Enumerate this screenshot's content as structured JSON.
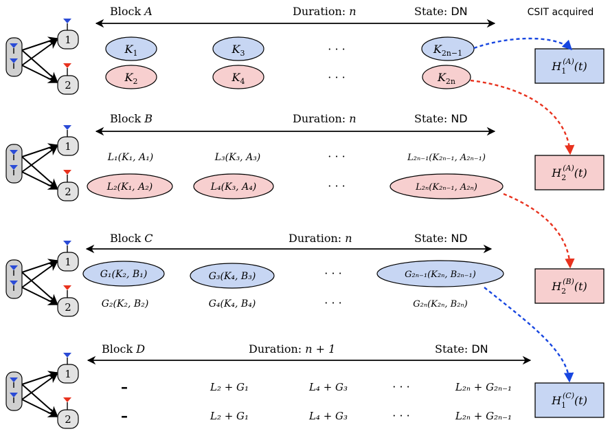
{
  "header": {
    "csit_label": "CSIT acquired"
  },
  "blocks": [
    {
      "id": "A",
      "title_prefix": "Block ",
      "title_var": "A",
      "duration_prefix": "Duration: ",
      "duration_value": "n",
      "state_prefix": "State: ",
      "state_value": "DN",
      "rx1_label": "1",
      "rx2_label": "2",
      "row1": [
        {
          "base": "K",
          "sub": "1",
          "shape": "ellipse-blue"
        },
        {
          "base": "K",
          "sub": "3",
          "shape": "ellipse-blue"
        },
        {
          "base": "· · ·",
          "sub": "",
          "shape": "none"
        },
        {
          "base": "K",
          "sub": "2n−1",
          "shape": "ellipse-blue"
        }
      ],
      "row2": [
        {
          "base": "K",
          "sub": "2",
          "shape": "ellipse-red"
        },
        {
          "base": "K",
          "sub": "4",
          "shape": "ellipse-red"
        },
        {
          "base": "· · ·",
          "sub": "",
          "shape": "none"
        },
        {
          "base": "K",
          "sub": "2n",
          "shape": "ellipse-red"
        }
      ]
    },
    {
      "id": "B",
      "title_prefix": "Block ",
      "title_var": "B",
      "duration_prefix": "Duration: ",
      "duration_value": "n",
      "state_prefix": "State: ",
      "state_value": "ND",
      "rx1_label": "1",
      "rx2_label": "2",
      "row1": [
        {
          "text": "L₁(K₁, A₁)",
          "shape": "none"
        },
        {
          "text": "L₃(K₃, A₃)",
          "shape": "none"
        },
        {
          "text": "· · ·",
          "shape": "none"
        },
        {
          "text": "L₂ₙ₋₁(K₂ₙ₋₁, A₂ₙ₋₁)",
          "shape": "none"
        }
      ],
      "row2": [
        {
          "text": "L₂(K₁, A₂)",
          "shape": "ellipse-red"
        },
        {
          "text": "L₄(K₃, A₄)",
          "shape": "ellipse-red"
        },
        {
          "text": "· · ·",
          "shape": "none"
        },
        {
          "text": "L₂ₙ(K₂ₙ₋₁, A₂ₙ)",
          "shape": "ellipse-red"
        }
      ]
    },
    {
      "id": "C",
      "title_prefix": "Block ",
      "title_var": "C",
      "duration_prefix": "Duration: ",
      "duration_value": "n",
      "state_prefix": "State: ",
      "state_value": "ND",
      "rx1_label": "1",
      "rx2_label": "2",
      "row1": [
        {
          "text": "G₁(K₂, B₁)",
          "shape": "ellipse-blue"
        },
        {
          "text": "G₃(K₄, B₃)",
          "shape": "ellipse-blue"
        },
        {
          "text": "· · ·",
          "shape": "none"
        },
        {
          "text": "G₂ₙ₋₁(K₂ₙ, B₂ₙ₋₁)",
          "shape": "ellipse-blue"
        }
      ],
      "row2": [
        {
          "text": "G₂(K₂, B₂)",
          "shape": "none"
        },
        {
          "text": "G₄(K₄, B₄)",
          "shape": "none"
        },
        {
          "text": "· · ·",
          "shape": "none"
        },
        {
          "text": "G₂ₙ(K₂ₙ, B₂ₙ)",
          "shape": "none"
        }
      ]
    },
    {
      "id": "D",
      "title_prefix": "Block ",
      "title_var": "D",
      "duration_prefix": "Duration: ",
      "duration_value": "n + 1",
      "state_prefix": "State: ",
      "state_value": "DN",
      "rx1_label": "1",
      "rx2_label": "2",
      "row1": [
        {
          "text": "–"
        },
        {
          "text": "L₂ + G₁"
        },
        {
          "text": "L₄ + G₃"
        },
        {
          "text": "· · ·"
        },
        {
          "text": "L₂ₙ + G₂ₙ₋₁"
        }
      ],
      "row2": [
        {
          "text": "–"
        },
        {
          "text": "L₂ + G₁"
        },
        {
          "text": "L₄ + G₃"
        },
        {
          "text": "· · ·"
        },
        {
          "text": "L₂ₙ + G₂ₙ₋₁"
        }
      ]
    }
  ],
  "csit_boxes": [
    {
      "base": "H",
      "sub": "1",
      "sup": "(A)",
      "arg": "(t)",
      "color": "blue"
    },
    {
      "base": "H",
      "sub": "2",
      "sup": "(A)",
      "arg": "(t)",
      "color": "red"
    },
    {
      "base": "H",
      "sub": "2",
      "sup": "(B)",
      "arg": "(t)",
      "color": "red"
    },
    {
      "base": "H",
      "sub": "1",
      "sup": "(C)",
      "arg": "(t)",
      "color": "blue"
    }
  ],
  "colors": {
    "blue_fill": "#c7d6f3",
    "red_fill": "#f7cfcf",
    "blue_arrow": "#1746e0",
    "red_arrow": "#e8321e",
    "tx_fill": "#d0d0d0",
    "rx_fill": "#e2e2e2"
  }
}
